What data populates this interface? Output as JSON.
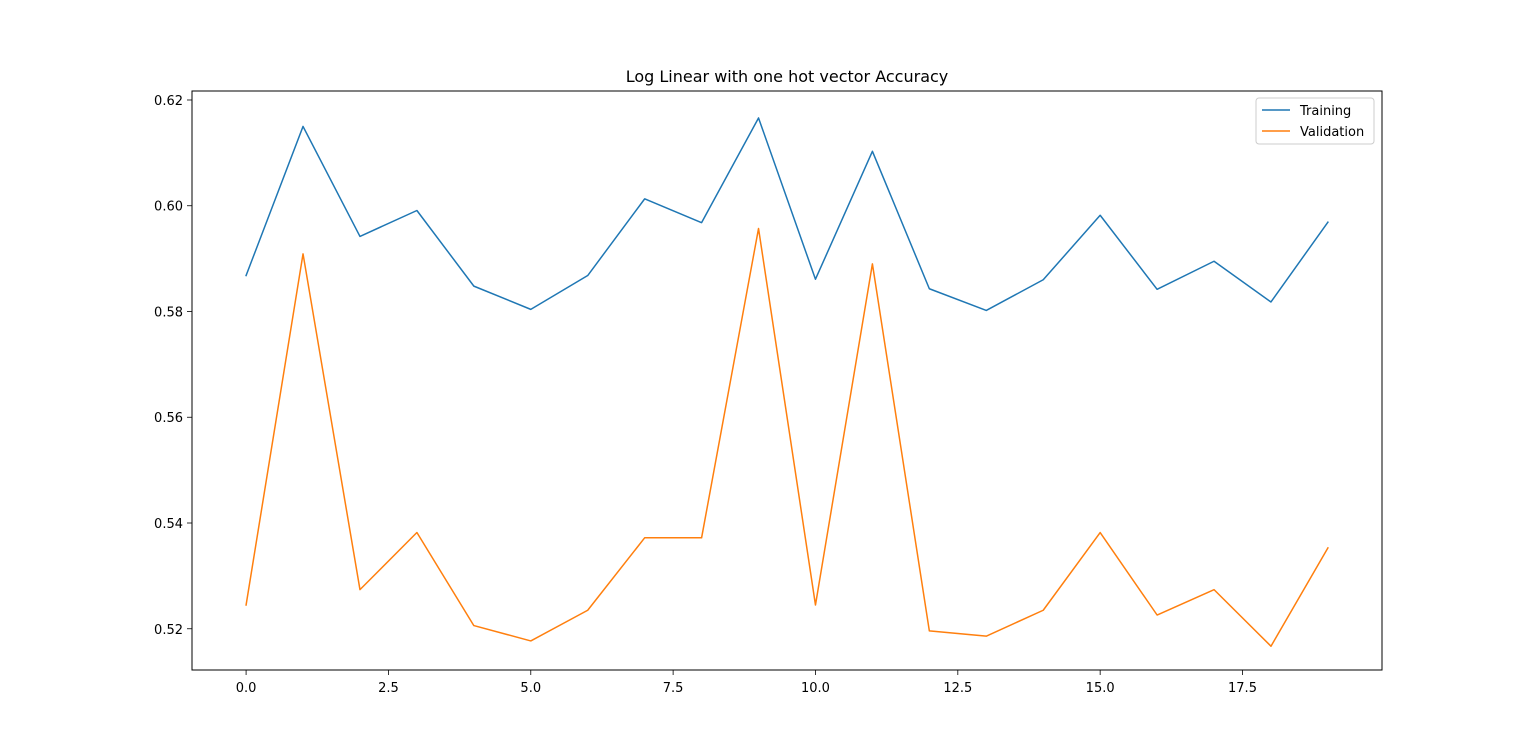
{
  "chart_data": {
    "type": "line",
    "title": "Log Linear with one hot vector Accuracy",
    "xlabel": "",
    "ylabel": "",
    "x": [
      0,
      1,
      2,
      3,
      4,
      5,
      6,
      7,
      8,
      9,
      10,
      11,
      12,
      13,
      14,
      15,
      16,
      17,
      18,
      19
    ],
    "series": [
      {
        "name": "Training",
        "color": "#1f77b4",
        "values": [
          0.5868,
          0.615,
          0.5942,
          0.5991,
          0.5848,
          0.5804,
          0.5868,
          0.6013,
          0.5968,
          0.6166,
          0.5861,
          0.6103,
          0.5843,
          0.5802,
          0.586,
          0.5982,
          0.5842,
          0.5895,
          0.5818,
          0.5969
        ]
      },
      {
        "name": "Validation",
        "color": "#ff7f0e",
        "values": [
          0.5245,
          0.5909,
          0.5274,
          0.5382,
          0.5206,
          0.5177,
          0.5235,
          0.5372,
          0.5372,
          0.5957,
          0.5245,
          0.589,
          0.5196,
          0.5186,
          0.5235,
          0.5382,
          0.5226,
          0.5274,
          0.5167,
          0.5353
        ]
      }
    ],
    "xlim": [
      -0.95,
      19.95
    ],
    "ylim": [
      0.5122,
      0.6217
    ],
    "xticks": [
      0.0,
      2.5,
      5.0,
      7.5,
      10.0,
      12.5,
      15.0,
      17.5
    ],
    "xtick_labels": [
      "0.0",
      "2.5",
      "5.0",
      "7.5",
      "10.0",
      "12.5",
      "15.0",
      "17.5"
    ],
    "yticks": [
      0.52,
      0.54,
      0.56,
      0.58,
      0.6,
      0.62
    ],
    "ytick_labels": [
      "0.52",
      "0.54",
      "0.56",
      "0.58",
      "0.60",
      "0.62"
    ],
    "grid": false,
    "legend": "top-right"
  }
}
